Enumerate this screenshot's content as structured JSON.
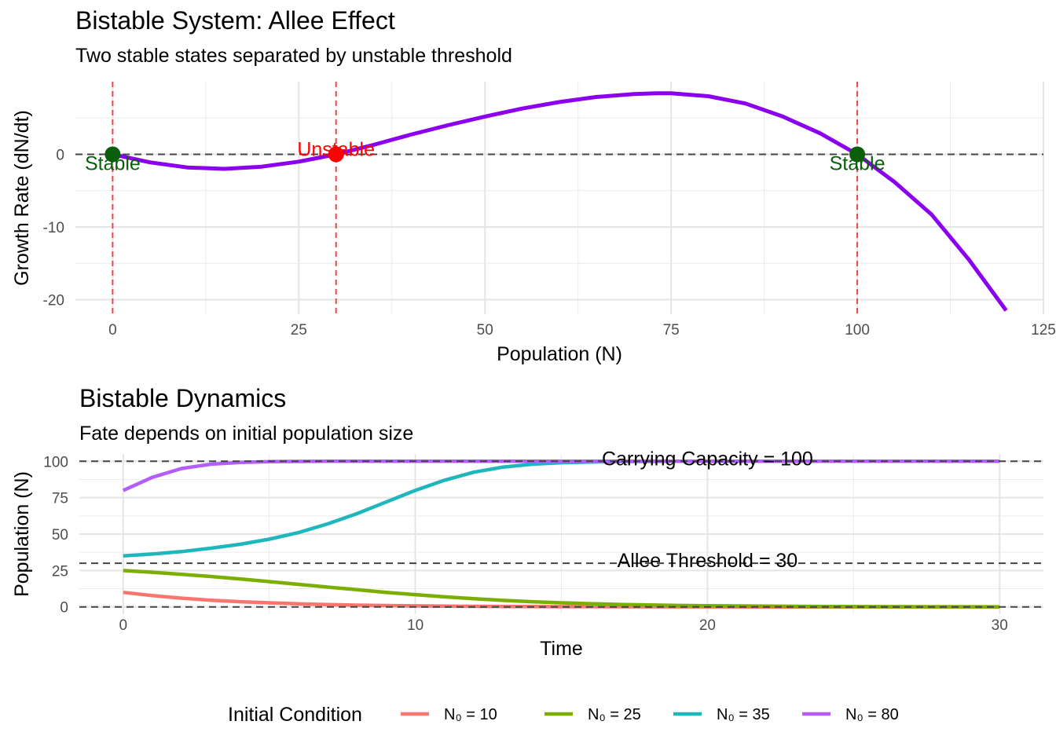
{
  "chart_data": [
    {
      "type": "line",
      "title": "Bistable System: Allee Effect",
      "subtitle": "Two stable states separated by unstable threshold",
      "xlabel": "Population (N)",
      "ylabel": "Growth Rate (dN/dt)",
      "xlim": [
        -5,
        125
      ],
      "ylim": [
        -22,
        10
      ],
      "x_ticks": [
        0,
        25,
        50,
        75,
        100,
        125
      ],
      "y_ticks": [
        -20,
        -10,
        0
      ],
      "grid": true,
      "curve_color": "#8B00EE",
      "curve": [
        {
          "x": 0,
          "y": 0
        },
        {
          "x": 5,
          "y": -1.1
        },
        {
          "x": 10,
          "y": -1.8
        },
        {
          "x": 15,
          "y": -2.0
        },
        {
          "x": 20,
          "y": -1.7
        },
        {
          "x": 25,
          "y": -1.0
        },
        {
          "x": 30,
          "y": 0
        },
        {
          "x": 35,
          "y": 1.3
        },
        {
          "x": 40,
          "y": 2.7
        },
        {
          "x": 45,
          "y": 4.0
        },
        {
          "x": 50,
          "y": 5.2
        },
        {
          "x": 55,
          "y": 6.3
        },
        {
          "x": 60,
          "y": 7.2
        },
        {
          "x": 65,
          "y": 7.9
        },
        {
          "x": 70,
          "y": 8.3
        },
        {
          "x": 73,
          "y": 8.4
        },
        {
          "x": 75,
          "y": 8.4
        },
        {
          "x": 80,
          "y": 8.0
        },
        {
          "x": 85,
          "y": 7.0
        },
        {
          "x": 90,
          "y": 5.2
        },
        {
          "x": 95,
          "y": 2.9
        },
        {
          "x": 100,
          "y": 0
        },
        {
          "x": 105,
          "y": -3.8
        },
        {
          "x": 110,
          "y": -8.3
        },
        {
          "x": 115,
          "y": -14.5
        },
        {
          "x": 120,
          "y": -21.5
        }
      ],
      "hlines": [
        {
          "y": 0,
          "color": "#444444"
        }
      ],
      "vlines": [
        {
          "x": 0
        },
        {
          "x": 30
        },
        {
          "x": 100
        }
      ],
      "vline_color": "#E8474A",
      "points": [
        {
          "x": 0,
          "y": 0,
          "label": "Stable",
          "color": "#0B5F0B"
        },
        {
          "x": 30,
          "y": 0,
          "label": "Unstable",
          "color": "#FF0000"
        },
        {
          "x": 100,
          "y": 0,
          "label": "Stable",
          "color": "#0B5F0B"
        }
      ]
    },
    {
      "type": "line",
      "title": "Bistable Dynamics",
      "subtitle": "Fate depends on initial population size",
      "xlabel": "Time",
      "ylabel": "Population (N)",
      "xlim": [
        -1.5,
        31.5
      ],
      "ylim": [
        -5,
        105
      ],
      "x_ticks": [
        0,
        10,
        20,
        30
      ],
      "y_ticks": [
        0,
        25,
        50,
        75,
        100
      ],
      "grid": true,
      "x": [
        0,
        1,
        2,
        3,
        4,
        5,
        6,
        7,
        8,
        9,
        10,
        11,
        12,
        13,
        14,
        15,
        16,
        17,
        18,
        19,
        20,
        22,
        24,
        26,
        28,
        30
      ],
      "series": [
        {
          "name": "N₀ = 10",
          "color": "#F8766D",
          "values": [
            10,
            7.8,
            6.0,
            4.6,
            3.6,
            2.8,
            2.1,
            1.6,
            1.2,
            0.95,
            0.7,
            0.55,
            0.4,
            0.3,
            0.25,
            0.2,
            0.15,
            0.1,
            0.08,
            0.06,
            0.05,
            0.03,
            0.02,
            0.01,
            0.0,
            0.0
          ]
        },
        {
          "name": "N₀ = 25",
          "color": "#7CAE00",
          "values": [
            25,
            23.8,
            22.4,
            20.9,
            19.2,
            17.4,
            15.5,
            13.6,
            11.8,
            10.0,
            8.4,
            6.9,
            5.6,
            4.5,
            3.6,
            2.8,
            2.2,
            1.7,
            1.3,
            1.0,
            0.8,
            0.5,
            0.3,
            0.2,
            0.1,
            0.05
          ]
        },
        {
          "name": "N₀ = 35",
          "color": "#1FB7BC",
          "values": [
            35,
            36.3,
            38,
            40.3,
            43,
            46.5,
            51,
            57,
            64,
            72,
            80,
            87,
            92.5,
            96,
            98,
            99,
            99.5,
            99.8,
            99.9,
            100,
            100,
            100,
            100,
            100,
            100,
            100
          ]
        },
        {
          "name": "N₀ = 80",
          "color": "#B35EFA",
          "values": [
            80,
            89,
            95,
            98,
            99.2,
            99.7,
            99.9,
            100,
            100,
            100,
            100,
            100,
            100,
            100,
            100,
            100,
            100,
            100,
            100,
            100,
            100,
            100,
            100,
            100,
            100,
            100
          ]
        }
      ],
      "hlines": [
        {
          "y": 100,
          "label": "Carrying Capacity = 100",
          "label_x": 20
        },
        {
          "y": 30,
          "label": "Allee Threshold = 30",
          "label_x": 20
        },
        {
          "y": 0,
          "label": ""
        }
      ],
      "legend": {
        "title": "Initial Condition",
        "position": "bottom"
      }
    }
  ]
}
